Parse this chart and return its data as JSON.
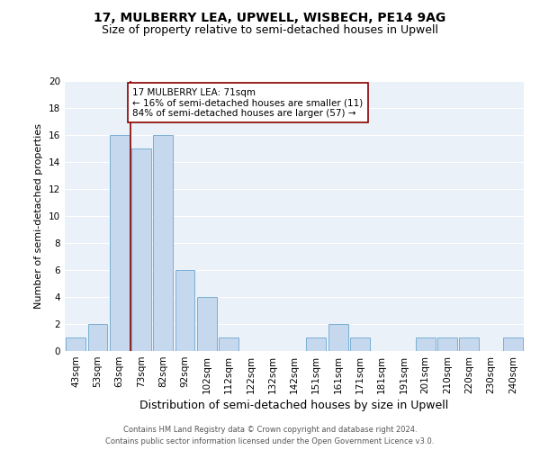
{
  "title": "17, MULBERRY LEA, UPWELL, WISBECH, PE14 9AG",
  "subtitle": "Size of property relative to semi-detached houses in Upwell",
  "xlabel": "Distribution of semi-detached houses by size in Upwell",
  "ylabel": "Number of semi-detached properties",
  "categories": [
    "43sqm",
    "53sqm",
    "63sqm",
    "73sqm",
    "82sqm",
    "92sqm",
    "102sqm",
    "112sqm",
    "122sqm",
    "132sqm",
    "142sqm",
    "151sqm",
    "161sqm",
    "171sqm",
    "181sqm",
    "191sqm",
    "201sqm",
    "210sqm",
    "220sqm",
    "230sqm",
    "240sqm"
  ],
  "values": [
    1,
    2,
    16,
    15,
    16,
    6,
    4,
    1,
    0,
    0,
    0,
    1,
    2,
    1,
    0,
    0,
    1,
    1,
    1,
    0,
    1
  ],
  "bar_color": "#c5d8ed",
  "bar_edgecolor": "#7bafd4",
  "highlight_line_color": "#8b0000",
  "annotation_text": "17 MULBERRY LEA: 71sqm\n← 16% of semi-detached houses are smaller (11)\n84% of semi-detached houses are larger (57) →",
  "annotation_box_color": "#ffffff",
  "annotation_box_edgecolor": "#8b0000",
  "ylim": [
    0,
    20
  ],
  "yticks": [
    0,
    2,
    4,
    6,
    8,
    10,
    12,
    14,
    16,
    18,
    20
  ],
  "background_color": "#eaf1f8",
  "footer1": "Contains HM Land Registry data © Crown copyright and database right 2024.",
  "footer2": "Contains public sector information licensed under the Open Government Licence v3.0.",
  "title_fontsize": 10,
  "subtitle_fontsize": 9,
  "xlabel_fontsize": 9,
  "ylabel_fontsize": 8,
  "tick_fontsize": 7.5,
  "footer_fontsize": 6,
  "annotation_fontsize": 7.5
}
